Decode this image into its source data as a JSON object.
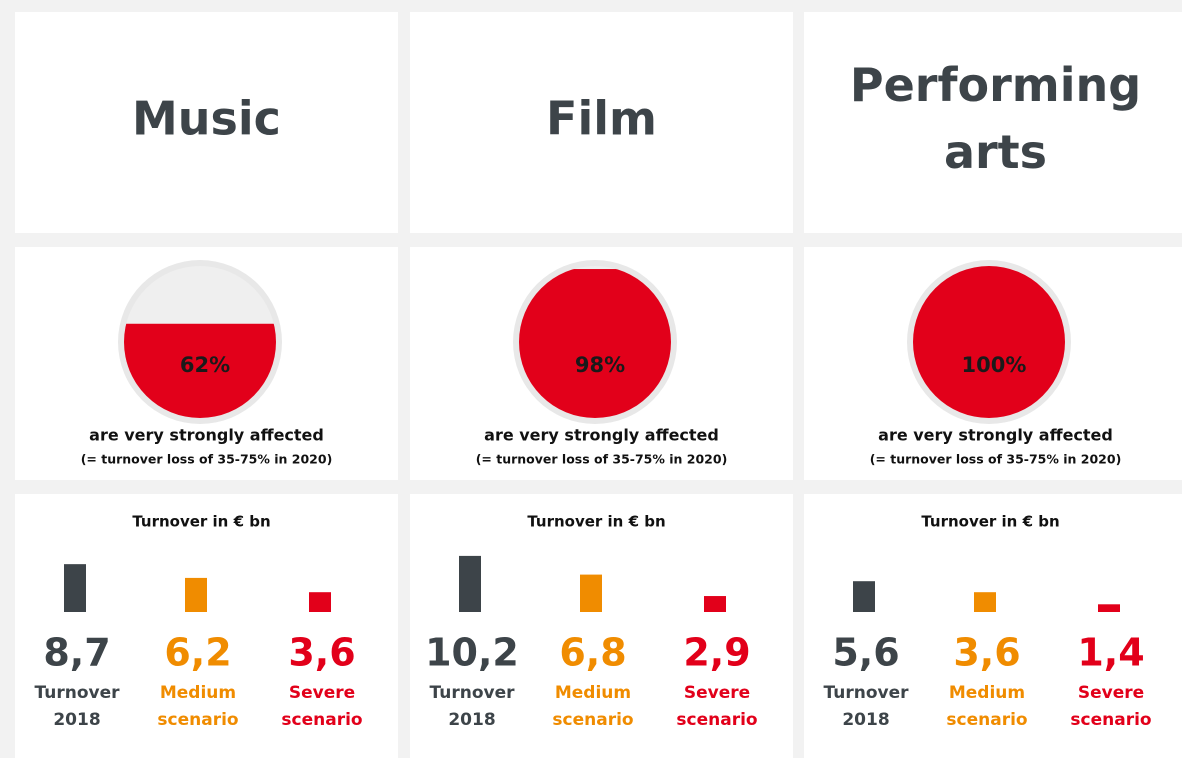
{
  "columns": [
    {
      "title": [
        "Music"
      ],
      "affected": {
        "value": 62,
        "label": "62%"
      },
      "caption": "are very strongly affected",
      "note": "(= turnover loss of 35-75% in 2020)",
      "chart_title": "Turnover in € bn",
      "bars": [
        {
          "value": 8.7,
          "value_label": "8,7",
          "label": [
            "Turnover",
            "2018"
          ],
          "color": "#3d4449"
        },
        {
          "value": 6.2,
          "value_label": "6,2",
          "label": [
            "Medium",
            "scenario"
          ],
          "color": "#f08c00"
        },
        {
          "value": 3.6,
          "value_label": "3,6",
          "label": [
            "Severe",
            "scenario"
          ],
          "color": "#e2001a"
        }
      ]
    },
    {
      "title": [
        "Film"
      ],
      "affected": {
        "value": 98,
        "label": "98%"
      },
      "caption": "are very strongly affected",
      "note": "(= turnover loss of 35-75% in 2020)",
      "chart_title": "Turnover in € bn",
      "bars": [
        {
          "value": 10.2,
          "value_label": "10,2",
          "label": [
            "Turnover",
            "2018"
          ],
          "color": "#3d4449"
        },
        {
          "value": 6.8,
          "value_label": "6,8",
          "label": [
            "Medium",
            "scenario"
          ],
          "color": "#f08c00"
        },
        {
          "value": 2.9,
          "value_label": "2,9",
          "label": [
            "Severe",
            "scenario"
          ],
          "color": "#e2001a"
        }
      ]
    },
    {
      "title": [
        "Performing",
        "arts"
      ],
      "affected": {
        "value": 100,
        "label": "100%"
      },
      "caption": "are very strongly affected",
      "note": "(= turnover loss of 35-75% in 2020)",
      "chart_title": "Turnover in € bn",
      "bars": [
        {
          "value": 5.6,
          "value_label": "5,6",
          "label": [
            "Turnover",
            "2018"
          ],
          "color": "#3d4449"
        },
        {
          "value": 3.6,
          "value_label": "3,6",
          "label": [
            "Medium",
            "scenario"
          ],
          "color": "#f08c00"
        },
        {
          "value": 1.4,
          "value_label": "1,4",
          "label": [
            "Severe",
            "scenario"
          ],
          "color": "#e2001a"
        }
      ]
    }
  ]
}
